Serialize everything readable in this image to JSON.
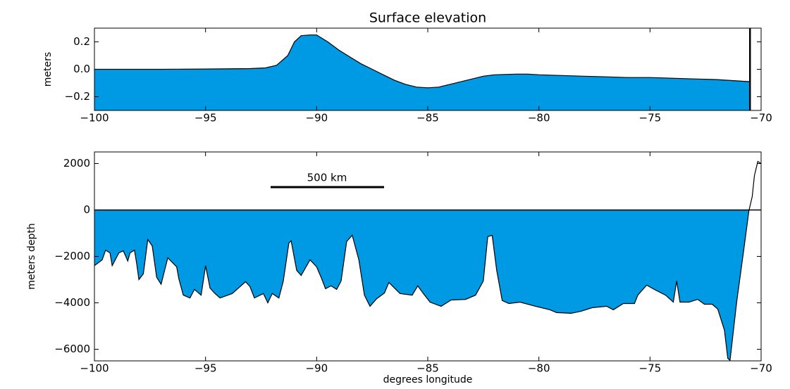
{
  "chart_data": [
    {
      "type": "area",
      "title": "Surface elevation",
      "y_label": "meters",
      "fill": "below",
      "color": "#0099e3",
      "vline": -70.5,
      "x": [
        -100,
        -97,
        -95,
        -93,
        -92.3,
        -91.8,
        -91.3,
        -91,
        -90.7,
        -90.3,
        -90,
        -89.5,
        -89,
        -88.5,
        -88,
        -87.5,
        -87,
        -86.5,
        -86,
        -85.5,
        -85,
        -84.5,
        -84,
        -83.5,
        -83,
        -82.5,
        -82,
        -81,
        -80.5,
        -80,
        -79,
        -78,
        -77,
        -76,
        -75,
        -74,
        -73,
        -72,
        -71,
        -70.5
      ],
      "values": [
        0.0,
        0.0,
        0.002,
        0.005,
        0.01,
        0.03,
        0.1,
        0.2,
        0.245,
        0.25,
        0.25,
        0.2,
        0.14,
        0.09,
        0.04,
        0.0,
        -0.04,
        -0.08,
        -0.11,
        -0.13,
        -0.135,
        -0.13,
        -0.11,
        -0.09,
        -0.07,
        -0.05,
        -0.04,
        -0.035,
        -0.035,
        -0.04,
        -0.045,
        -0.05,
        -0.055,
        -0.06,
        -0.06,
        -0.065,
        -0.07,
        -0.075,
        -0.085,
        -0.09
      ],
      "xlim": [
        -100,
        -70
      ],
      "ylim": [
        -0.3,
        0.3
      ],
      "xticks": [
        {
          "value": -100,
          "label": "−100"
        },
        {
          "value": -95,
          "label": "−95"
        },
        {
          "value": -90,
          "label": "−90"
        },
        {
          "value": -85,
          "label": "−85"
        },
        {
          "value": -80,
          "label": "−80"
        },
        {
          "value": -75,
          "label": "−75"
        },
        {
          "value": -70,
          "label": "−70"
        }
      ],
      "yticks": [
        {
          "value": -0.2,
          "label": "−0.2"
        },
        {
          "value": 0.0,
          "label": "0.0"
        },
        {
          "value": 0.2,
          "label": "0.2"
        }
      ]
    },
    {
      "type": "area",
      "y_label": "meters depth",
      "x_label": "degrees longitude",
      "annotation": "500 km",
      "fill": "to-zero",
      "color": "#0099e3",
      "x": [
        -100,
        -99.65,
        -99.5,
        -99.3,
        -99.2,
        -98.9,
        -98.7,
        -98.5,
        -98.4,
        -98.2,
        -98.1,
        -98,
        -97.8,
        -97.6,
        -97.4,
        -97.2,
        -97.0,
        -96.7,
        -96.3,
        -96.2,
        -96.0,
        -95.7,
        -95.5,
        -95.2,
        -95.0,
        -94.8,
        -94.6,
        -94.35,
        -93.8,
        -93.2,
        -93.0,
        -92.8,
        -92.4,
        -92.2,
        -92.0,
        -91.7,
        -91.5,
        -91.25,
        -91.15,
        -90.9,
        -90.7,
        -90.3,
        -90.0,
        -89.8,
        -89.6,
        -89.35,
        -89.1,
        -88.9,
        -88.65,
        -88.4,
        -88.1,
        -87.85,
        -87.6,
        -87.3,
        -86.95,
        -86.75,
        -86.5,
        -86.25,
        -85.7,
        -85.45,
        -85.2,
        -84.9,
        -84.4,
        -83.95,
        -83.3,
        -82.85,
        -82.5,
        -82.3,
        -82.1,
        -81.9,
        -81.65,
        -81.35,
        -80.85,
        -80.15,
        -79.5,
        -79.2,
        -78.55,
        -78.1,
        -77.6,
        -76.95,
        -76.65,
        -76.2,
        -75.7,
        -75.55,
        -75.15,
        -74.75,
        -74.3,
        -73.95,
        -73.8,
        -73.65,
        -73.25,
        -72.85,
        -72.55,
        -72.2,
        -71.95,
        -71.65,
        -71.5,
        -71.4,
        -71.1,
        -70.8,
        -70.55,
        -70.4,
        -70.3,
        -70.15,
        -70.0
      ],
      "values": [
        -2400,
        -2150,
        -1730,
        -1850,
        -2400,
        -1850,
        -1760,
        -2200,
        -1850,
        -1730,
        -2300,
        -3000,
        -2750,
        -1270,
        -1550,
        -2900,
        -3200,
        -2060,
        -2450,
        -2970,
        -3670,
        -3790,
        -3420,
        -3670,
        -2400,
        -3360,
        -3580,
        -3790,
        -3600,
        -3090,
        -3300,
        -3790,
        -3600,
        -4000,
        -3600,
        -3790,
        -3060,
        -1420,
        -1330,
        -2600,
        -2820,
        -2150,
        -2450,
        -2900,
        -3390,
        -3270,
        -3420,
        -3060,
        -1360,
        -1090,
        -2150,
        -3670,
        -4150,
        -3820,
        -3580,
        -3120,
        -3360,
        -3600,
        -3670,
        -3270,
        -3600,
        -3970,
        -4150,
        -3880,
        -3850,
        -3670,
        -3060,
        -1150,
        -1090,
        -2600,
        -3900,
        -4030,
        -3970,
        -4150,
        -4300,
        -4420,
        -4450,
        -4360,
        -4210,
        -4150,
        -4300,
        -4030,
        -4030,
        -3670,
        -3240,
        -3450,
        -3670,
        -3970,
        -3060,
        -3970,
        -3970,
        -3850,
        -4060,
        -4060,
        -4270,
        -5180,
        -6390,
        -6480,
        -3970,
        -1850,
        -30,
        580,
        1480,
        2090,
        2000
      ],
      "xlim": [
        -100,
        -70
      ],
      "ylim": [
        -6500,
        2500
      ],
      "xticks": [
        {
          "value": -100,
          "label": "−100"
        },
        {
          "value": -95,
          "label": "−95"
        },
        {
          "value": -90,
          "label": "−90"
        },
        {
          "value": -85,
          "label": "−85"
        },
        {
          "value": -80,
          "label": "−80"
        },
        {
          "value": -75,
          "label": "−75"
        },
        {
          "value": -70,
          "label": "−70"
        }
      ],
      "yticks": [
        {
          "value": -6000,
          "label": "−6000"
        },
        {
          "value": -4000,
          "label": "−4000"
        },
        {
          "value": -2000,
          "label": "−2000"
        },
        0,
        2000
      ]
    }
  ]
}
